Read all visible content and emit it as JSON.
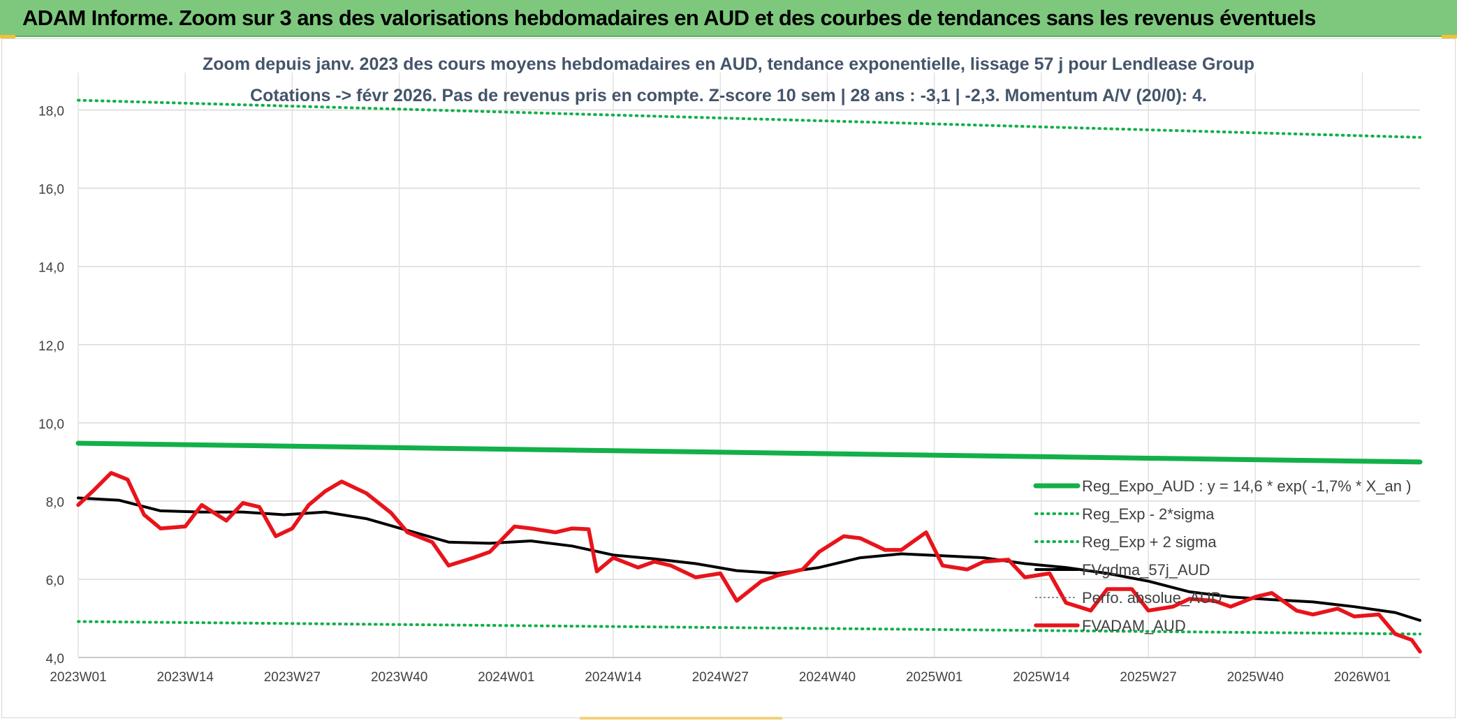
{
  "header": {
    "title": "ADAM Informe. Zoom sur 3 ans des valorisations hebdomadaires en AUD et des courbes de tendances sans les revenus éventuels"
  },
  "chart_data": {
    "type": "line",
    "title": "Zoom depuis janv. 2023 des cours moyens hebdomadaires en AUD, tendance exponentielle, lissage 57 j pour Lendlease Group",
    "subtitle": "Cotations -> févr 2026. Pas de revenus pris en compte. Z-score 10 sem | 28 ans : -3,1 | -2,3. Momentum A/V (20/0): 4.",
    "xlabel": "",
    "ylabel": "",
    "ylim": [
      4.0,
      18.6
    ],
    "yticks": [
      "4,0",
      "6,0",
      "8,0",
      "10,0",
      "12,0",
      "14,0",
      "16,0",
      "18,0"
    ],
    "ytick_values": [
      4,
      6,
      8,
      10,
      12,
      14,
      16,
      18
    ],
    "x_ticks": [
      "2023W01",
      "2023W14",
      "2023W27",
      "2023W40",
      "2024W01",
      "2024W14",
      "2024W27",
      "2024W40",
      "2025W01",
      "2025W14",
      "2025W27",
      "2025W40",
      "2026W01"
    ],
    "x_tick_index": [
      0,
      13,
      26,
      39,
      52,
      65,
      78,
      91,
      104,
      117,
      130,
      143,
      156
    ],
    "x_count": 164,
    "grid": true,
    "legend_position": "right, lower-middle",
    "series": [
      {
        "name": "Reg_Expo_AUD : y = 14,6 * exp( -1,7% *  X_an )",
        "color": "#12b04a",
        "style": "solid-thick",
        "x": [
          0,
          163
        ],
        "values": [
          9.48,
          9.0
        ]
      },
      {
        "name": "Reg_Exp - 2*sigma",
        "color": "#12b04a",
        "style": "dotted",
        "x": [
          0,
          163
        ],
        "values": [
          4.92,
          4.6
        ]
      },
      {
        "name": "Reg_Exp + 2 sigma",
        "color": "#12b04a",
        "style": "dotted",
        "x": [
          0,
          163
        ],
        "values": [
          18.25,
          17.3
        ]
      },
      {
        "name": "FVgdma_57j_AUD",
        "color": "#000000",
        "style": "solid",
        "x": [
          0,
          5,
          10,
          15,
          20,
          25,
          30,
          35,
          40,
          45,
          50,
          55,
          60,
          65,
          70,
          75,
          80,
          85,
          90,
          95,
          100,
          105,
          110,
          115,
          120,
          125,
          130,
          135,
          140,
          145,
          150,
          155,
          160,
          163
        ],
        "values": [
          8.08,
          8.02,
          7.75,
          7.72,
          7.72,
          7.65,
          7.72,
          7.55,
          7.25,
          6.95,
          6.92,
          6.98,
          6.85,
          6.62,
          6.52,
          6.4,
          6.22,
          6.15,
          6.3,
          6.55,
          6.65,
          6.6,
          6.55,
          6.4,
          6.3,
          6.15,
          5.95,
          5.68,
          5.55,
          5.48,
          5.42,
          5.3,
          5.15,
          4.95
        ]
      },
      {
        "name": "Perfo. absolue_AUD",
        "color": "#7f7f7f",
        "style": "dotted-thin",
        "x": [],
        "values": []
      },
      {
        "name": "FVADAM_AUD",
        "color": "#e8141b",
        "style": "solid-thick",
        "x": [
          0,
          2,
          4,
          6,
          8,
          10,
          13,
          15,
          18,
          20,
          22,
          24,
          26,
          28,
          30,
          32,
          35,
          38,
          40,
          43,
          45,
          48,
          50,
          53,
          55,
          58,
          60,
          62,
          63,
          65,
          68,
          70,
          72,
          75,
          78,
          80,
          83,
          85,
          88,
          90,
          93,
          95,
          98,
          100,
          103,
          105,
          108,
          110,
          113,
          115,
          118,
          120,
          123,
          125,
          128,
          130,
          133,
          135,
          138,
          140,
          143,
          145,
          148,
          150,
          153,
          155,
          158,
          160,
          162,
          163
        ],
        "values": [
          7.9,
          8.3,
          8.72,
          8.55,
          7.65,
          7.3,
          7.35,
          7.9,
          7.5,
          7.95,
          7.85,
          7.1,
          7.3,
          7.9,
          8.25,
          8.5,
          8.2,
          7.7,
          7.2,
          6.95,
          6.35,
          6.55,
          6.7,
          7.35,
          7.3,
          7.2,
          7.3,
          7.28,
          6.2,
          6.55,
          6.3,
          6.45,
          6.35,
          6.05,
          6.15,
          5.45,
          5.95,
          6.1,
          6.25,
          6.7,
          7.1,
          7.05,
          6.75,
          6.75,
          7.2,
          6.35,
          6.25,
          6.45,
          6.5,
          6.05,
          6.15,
          5.4,
          5.2,
          5.75,
          5.75,
          5.2,
          5.3,
          5.5,
          5.45,
          5.3,
          5.55,
          5.65,
          5.2,
          5.1,
          5.25,
          5.05,
          5.1,
          4.6,
          4.45,
          4.15
        ]
      }
    ]
  }
}
